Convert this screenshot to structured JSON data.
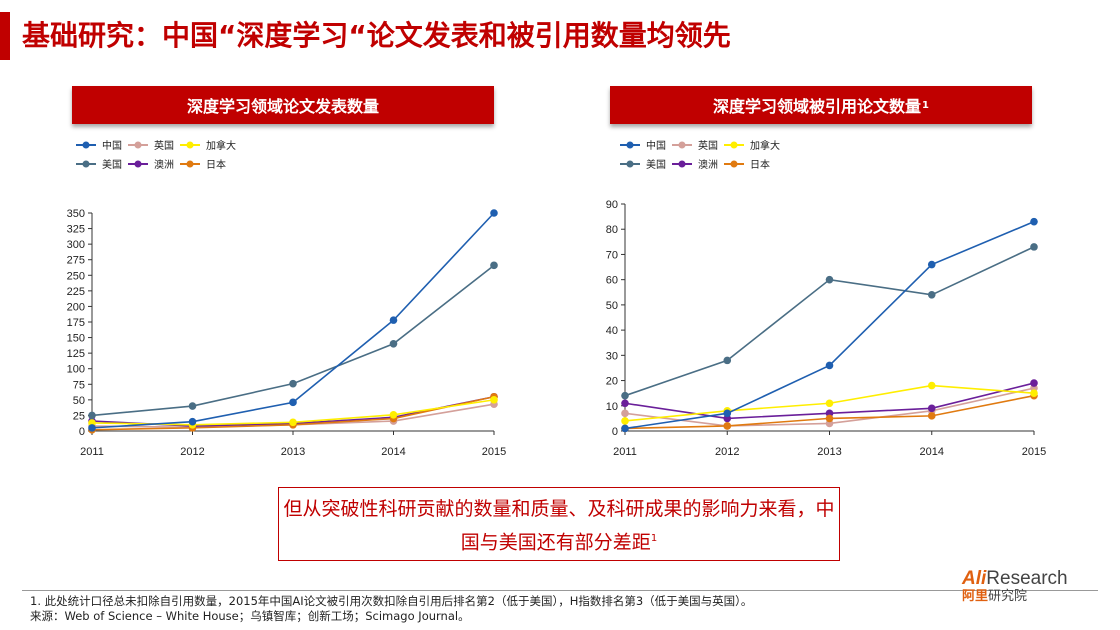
{
  "page": {
    "title": "基础研究：中国“深度学习“论文发表和被引用数量均领先",
    "callout_text": "但从突破性科研贡献的数量和质量、及科研成果的影响力来看，中国与美国还有部分差距",
    "callout_sup": "1",
    "footnote_1": "1. 此处统计口径总未扣除自引用数量，2015年中国AI论文被引用次数扣除自引用后排名第2（低于美国），H指数排名第3（低于美国与英国）。",
    "footnote_2": "来源：Web of Science – White House；乌镇智库；创新工场；Scimago Journal。",
    "logo_ali": "Ali",
    "logo_research": "Research",
    "logo_cn_red": "阿里",
    "logo_cn": "研究院",
    "colors": {
      "accent": "#c00000",
      "logo": "#e06010"
    }
  },
  "chart_data": [
    {
      "type": "line",
      "header": "深度学习领域论文发表数量",
      "x": [
        "2011",
        "2012",
        "2013",
        "2014",
        "2015"
      ],
      "ylim": [
        0,
        350
      ],
      "yticks": [
        0,
        25,
        50,
        75,
        100,
        125,
        150,
        175,
        200,
        225,
        250,
        275,
        300,
        325,
        350
      ],
      "series": [
        {
          "name": "中国",
          "color": "#1f5fb0",
          "values": [
            5,
            15,
            46,
            178,
            350
          ]
        },
        {
          "name": "英国",
          "color": "#d4a09a",
          "values": [
            8,
            6,
            10,
            16,
            43
          ]
        },
        {
          "name": "加拿大",
          "color": "#ffee00",
          "values": [
            13,
            10,
            14,
            26,
            50
          ]
        },
        {
          "name": "美国",
          "color": "#4a6e85",
          "values": [
            25,
            40,
            76,
            140,
            266
          ]
        },
        {
          "name": "澳洲",
          "color": "#6a1f9a",
          "values": [
            16,
            8,
            12,
            22,
            55
          ]
        },
        {
          "name": "日本",
          "color": "#e07a10",
          "values": [
            2,
            5,
            10,
            20,
            55
          ]
        }
      ]
    },
    {
      "type": "line",
      "header": "深度学习领域被引用论文数量",
      "header_sup": "1",
      "x": [
        "2011",
        "2012",
        "2013",
        "2014",
        "2015"
      ],
      "ylim": [
        0,
        90
      ],
      "yticks": [
        0,
        10,
        20,
        30,
        40,
        50,
        60,
        70,
        80,
        90
      ],
      "series": [
        {
          "name": "中国",
          "color": "#1f5fb0",
          "values": [
            1,
            7,
            26,
            66,
            83
          ]
        },
        {
          "name": "英国",
          "color": "#d4a09a",
          "values": [
            7,
            2,
            3,
            8,
            17
          ]
        },
        {
          "name": "加拿大",
          "color": "#ffee00",
          "values": [
            4,
            8,
            11,
            18,
            15
          ]
        },
        {
          "name": "美国",
          "color": "#4a6e85",
          "values": [
            14,
            28,
            60,
            54,
            73
          ]
        },
        {
          "name": "澳洲",
          "color": "#6a1f9a",
          "values": [
            11,
            5,
            7,
            9,
            19
          ]
        },
        {
          "name": "日本",
          "color": "#e07a10",
          "values": [
            1,
            2,
            5,
            6,
            14
          ]
        }
      ]
    }
  ]
}
